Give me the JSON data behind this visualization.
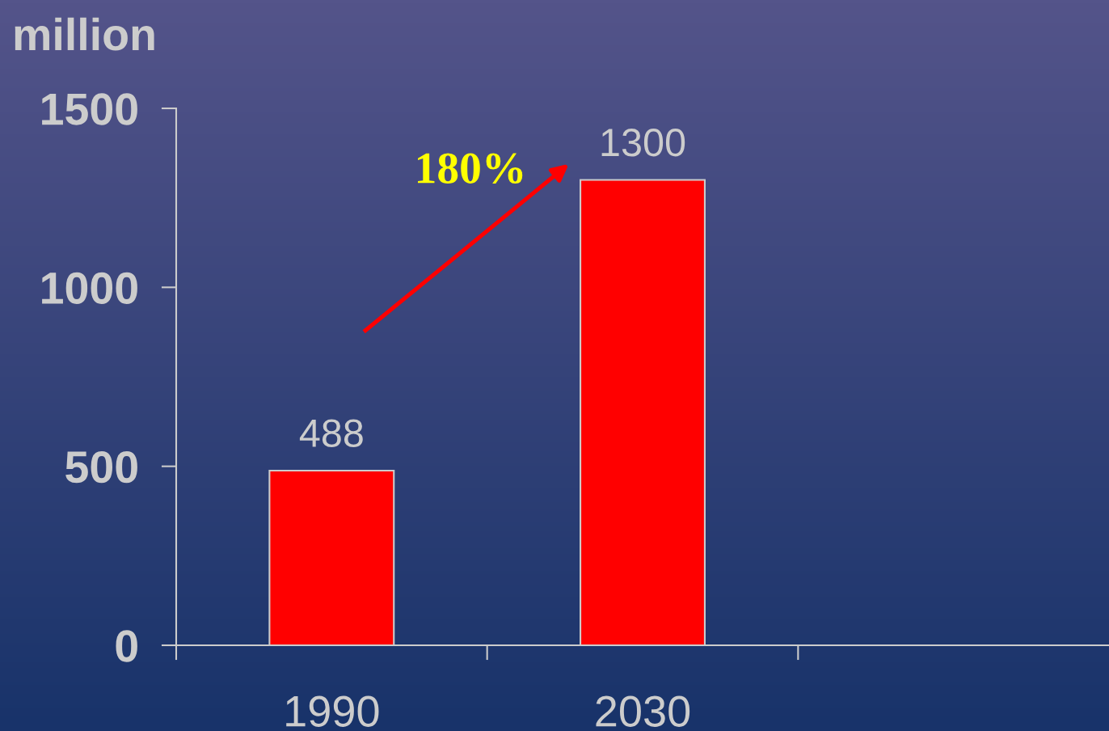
{
  "chart_data": {
    "type": "bar",
    "title": "million",
    "categories": [
      "1990",
      "2030",
      null
    ],
    "values": [
      488,
      1300,
      null
    ],
    "color": "#ff0000",
    "ylim": [
      0,
      1500
    ],
    "yticks": [
      0,
      500,
      1000,
      1500
    ],
    "data_labels": true,
    "annotations": [
      "180%"
    ]
  }
}
